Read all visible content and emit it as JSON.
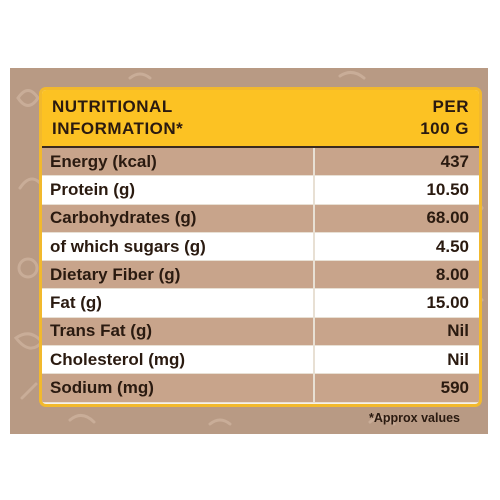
{
  "header": {
    "left_line1": "NUTRITIONAL",
    "left_line2": "INFORMATION*",
    "right_line1": "PER",
    "right_line2": "100 G"
  },
  "rows": [
    {
      "name": "Energy (kcal)",
      "value": "437"
    },
    {
      "name": "Protein (g)",
      "value": "10.50"
    },
    {
      "name": "Carbohydrates (g)",
      "value": "68.00"
    },
    {
      "name": "of which sugars (g)",
      "value": "4.50"
    },
    {
      "name": "Dietary Fiber (g)",
      "value": "8.00"
    },
    {
      "name": "Fat (g)",
      "value": "15.00"
    },
    {
      "name": "Trans Fat (g)",
      "value": "Nil"
    },
    {
      "name": "Cholesterol (mg)",
      "value": "Nil"
    },
    {
      "name": "Sodium (mg)",
      "value": "590"
    }
  ],
  "footnote": "*Approx values",
  "colors": {
    "background_panel": "#b89a84",
    "header_yellow": "#fcc223",
    "row_shaded": "#c8a48b",
    "row_plain": "#ffffff",
    "text": "#2a1a10"
  }
}
